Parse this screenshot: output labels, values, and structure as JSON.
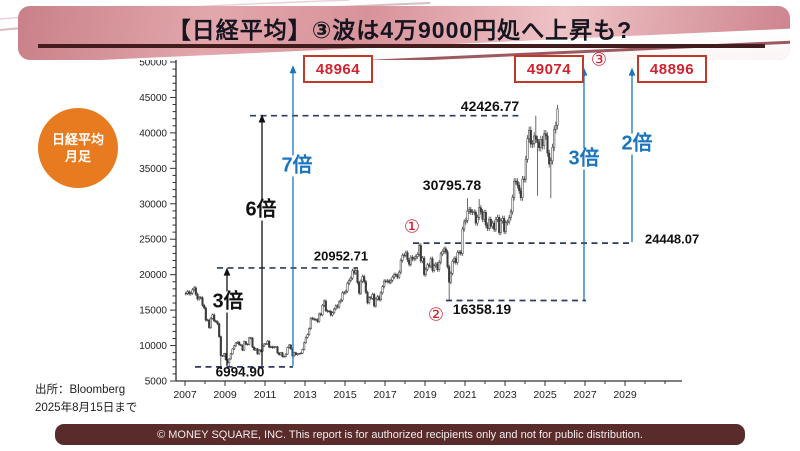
{
  "slide": {
    "title": "【日経平均】③波は4万9000円処へ上昇も?",
    "badge": {
      "line1": "日経平均",
      "line2": "月足"
    },
    "source": {
      "line1": "出所：Bloomberg",
      "line2": "2025年8月15日まで"
    },
    "footer": "© MONEY SQUARE, INC. This report is for authorized recipients only and not for public distribution."
  },
  "colors": {
    "accent_red": "#cc2233",
    "box_border": "#c0392b",
    "blue": "#1b75bc",
    "dashed_line": "#2e3b63",
    "axis": "#333333",
    "candle": "#3a3a3a",
    "band_pink": "#d8929a",
    "header_rule": "#431d1e",
    "footer_bg": "#5a2b2b",
    "badge_orange": "#e87b1f"
  },
  "chart_data": {
    "type": "candlestick",
    "title": "日経平均 月足 (Nikkei 225 monthly, Jan 2007 - Aug 15 2025)",
    "xlabel": "",
    "ylabel": "",
    "ylim": [
      5000,
      50000
    ],
    "xlim": [
      2006.7,
      2031.8
    ],
    "grid": false,
    "y_ticks": [
      5000,
      10000,
      15000,
      20000,
      25000,
      30000,
      35000,
      40000,
      45000,
      50000
    ],
    "y_minor_step": 1000,
    "x_ticks": [
      2007,
      2009,
      2011,
      2013,
      2015,
      2017,
      2019,
      2021,
      2023,
      2025,
      2027,
      2029
    ],
    "x_minor_step": 1,
    "series": {
      "name": "Nikkei 225",
      "start": "2007-01",
      "interval": "month",
      "close": [
        17380,
        17600,
        17290,
        17400,
        17880,
        18140,
        17250,
        16570,
        16790,
        16740,
        15680,
        15310,
        13590,
        13600,
        12530,
        13850,
        14340,
        13480,
        13380,
        13070,
        11260,
        8580,
        8510,
        8860,
        7990,
        7570,
        8110,
        8830,
        9520,
        9960,
        10360,
        10490,
        10130,
        10030,
        9350,
        10550,
        10200,
        10130,
        11090,
        11060,
        9770,
        9380,
        9540,
        8820,
        9370,
        9200,
        9940,
        10230,
        10240,
        10620,
        9760,
        9850,
        9690,
        9820,
        9830,
        8960,
        8700,
        8990,
        8430,
        8460,
        8800,
        9720,
        10080,
        9520,
        8540,
        9010,
        8700,
        8840,
        8870,
        8930,
        9450,
        10400,
        11140,
        11560,
        12400,
        13860,
        13770,
        13680,
        13670,
        13390,
        14460,
        14330,
        15660,
        16290,
        14910,
        14840,
        14830,
        14300,
        14630,
        15160,
        15620,
        15420,
        16170,
        16410,
        17460,
        17450,
        17670,
        18800,
        19210,
        19520,
        20560,
        20240,
        20590,
        18890,
        17390,
        19080,
        19750,
        19030,
        17520,
        16030,
        16760,
        16670,
        17230,
        15580,
        16570,
        16890,
        16450,
        17430,
        18310,
        19110,
        19040,
        19120,
        18910,
        19200,
        19650,
        20030,
        19930,
        19650,
        20360,
        22010,
        22720,
        22760,
        23100,
        22070,
        21450,
        22470,
        22200,
        22300,
        22550,
        22870,
        24120,
        21920,
        22350,
        20010,
        20770,
        21390,
        21210,
        22260,
        20600,
        21280,
        21520,
        20700,
        21760,
        22930,
        23290,
        23660,
        23210,
        21140,
        18920,
        20190,
        21880,
        22290,
        21710,
        23140,
        23190,
        22980,
        26430,
        27440,
        27660,
        28970,
        29180,
        28810,
        28860,
        28790,
        27280,
        28090,
        29450,
        28890,
        27820,
        28790,
        27000,
        26530,
        27820,
        26850,
        27280,
        26390,
        27800,
        28090,
        25940,
        27590,
        27970,
        26090,
        27330,
        27450,
        28040,
        28860,
        30890,
        33190,
        33170,
        32620,
        31860,
        30860,
        33490,
        33460,
        36290,
        39170,
        40370,
        38410,
        38490,
        39580,
        39100,
        38650,
        37920,
        39080,
        38210,
        39890,
        39570,
        37160,
        35620,
        36050,
        37970,
        40490,
        41070,
        43380
      ],
      "overrides": {
        "21": {
          "low": 6994.9
        },
        "26": {
          "low": 7021
        },
        "101": {
          "high": 20952.71
        },
        "141": {
          "high": 24448.07
        },
        "158": {
          "low": 16358.19
        },
        "169": {
          "high": 30795.78
        },
        "176": {
          "high": 30670
        },
        "210": {
          "high": 42426.77
        },
        "211": {
          "low": 31156
        },
        "219": {
          "low": 30792
        },
        "223": {
          "high": 43714
        }
      }
    },
    "key_levels": [
      {
        "value": 6994.9,
        "label": "6994.90",
        "from": 2007.5,
        "to": 2012.4
      },
      {
        "value": 20952.71,
        "label": "20952.71",
        "from": 2008.6,
        "to": 2015.65
      },
      {
        "value": 42426.77,
        "label": "42426.77",
        "from": 2010.25,
        "to": 2023.75
      },
      {
        "value": 24448.07,
        "label": "24448.07",
        "from": 2018.4,
        "to": 2029.2
      },
      {
        "value": 16358.19,
        "label": "16358.19",
        "from": 2020.05,
        "to": 2027.05
      }
    ],
    "price_labels": [
      {
        "text": "6994.90"
      },
      {
        "text": "20952.71"
      },
      {
        "text": "42426.77"
      },
      {
        "text": "30795.78"
      },
      {
        "text": "16358.19"
      },
      {
        "text": "24448.07"
      }
    ],
    "multipliers": [
      {
        "text": "3倍",
        "x_year": 2009.1,
        "from_value": 6994.9,
        "to_value": 21000,
        "color": "#111111"
      },
      {
        "text": "6倍",
        "x_year": 2010.85,
        "from_value": 6994.9,
        "to_value": 42600,
        "color": "#111111"
      },
      {
        "text": "7倍",
        "x_year": 2012.4,
        "from_value": 6994.9,
        "to_value": 49550,
        "color": "#1b75bc"
      },
      {
        "text": "3倍",
        "x_year": 2026.95,
        "from_value": 16358.19,
        "to_value": 49200,
        "color": "#1b75bc"
      },
      {
        "text": "2倍",
        "x_year": 2029.35,
        "from_value": 24448.07,
        "to_value": 49200,
        "color": "#1b75bc"
      }
    ],
    "projection_labels": [
      {
        "text": "48964"
      },
      {
        "text": "49074"
      },
      {
        "text": "48896"
      }
    ],
    "wave_marks": [
      {
        "text": "①"
      },
      {
        "text": "②"
      },
      {
        "text": "③"
      }
    ]
  }
}
